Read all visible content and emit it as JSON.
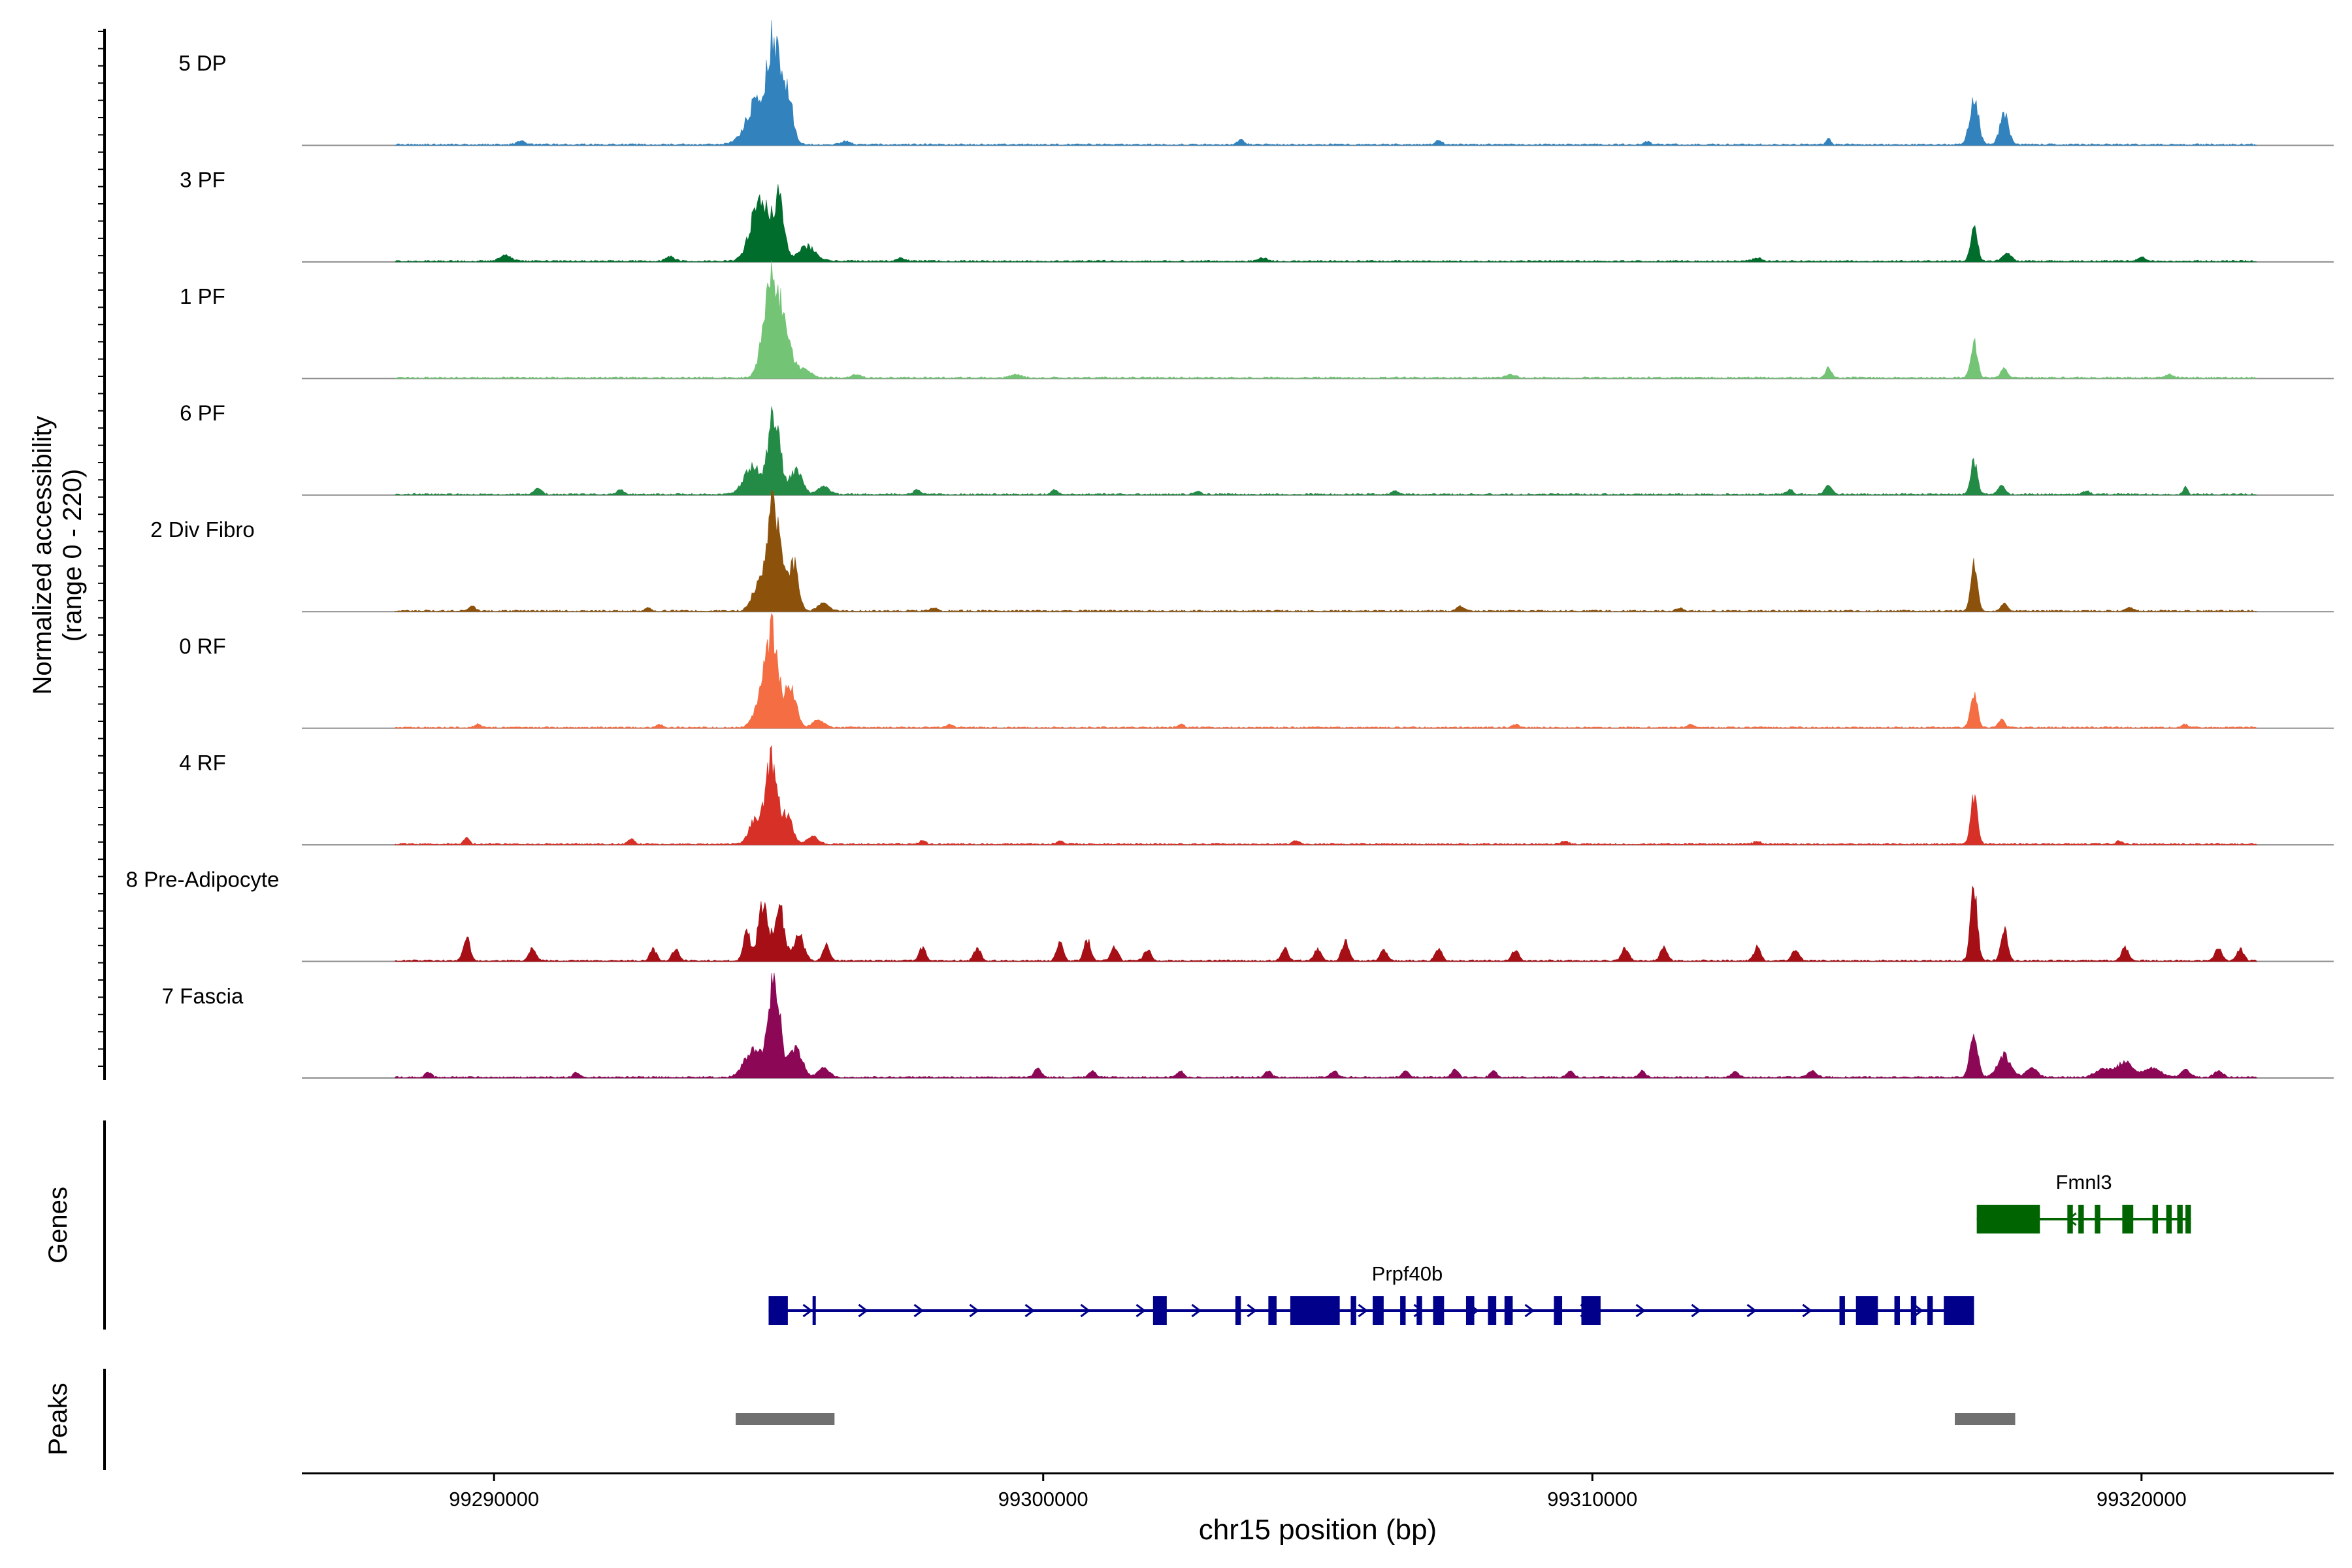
{
  "chart_data": {
    "type": "area",
    "title": "",
    "ylabel_line1": "Normalized accessibility",
    "ylabel_line2": "(range 0 - 220)",
    "yrange": [
      0,
      220
    ],
    "xlabel": "chr15 position (bp)",
    "xlim": [
      99286500,
      99323500
    ],
    "xticks": [
      {
        "value": 99290000,
        "label": "99290000"
      },
      {
        "value": 99300000,
        "label": "99300000"
      },
      {
        "value": 99310000,
        "label": "99310000"
      },
      {
        "value": 99320000,
        "label": "99320000"
      }
    ],
    "signal_range": [
      99288200,
      99322100
    ],
    "series": [
      {
        "name": "5 DP",
        "color": "#3182bd",
        "peaks": [
          [
            99294800,
            28,
            200
          ],
          [
            99295100,
            58,
            110
          ],
          [
            99295350,
            32,
            90
          ],
          [
            99316950,
            30,
            80
          ],
          [
            99317500,
            20,
            80
          ],
          [
            99314300,
            4,
            40
          ],
          [
            99303600,
            3,
            60
          ],
          [
            99307200,
            3,
            60
          ],
          [
            99290500,
            2,
            80
          ],
          [
            99296400,
            2,
            80
          ],
          [
            99311000,
            2,
            60
          ]
        ]
      },
      {
        "name": "3 PF",
        "color": "#006d2c",
        "peaks": [
          [
            99294850,
            40,
            170
          ],
          [
            99295200,
            38,
            90
          ],
          [
            99295700,
            10,
            150
          ],
          [
            99316950,
            24,
            60
          ],
          [
            99317550,
            5,
            80
          ],
          [
            99290200,
            4,
            100
          ],
          [
            99293200,
            3,
            80
          ],
          [
            99297400,
            2,
            80
          ],
          [
            99304000,
            2,
            80
          ],
          [
            99313000,
            2,
            80
          ],
          [
            99320000,
            3,
            60
          ]
        ]
      },
      {
        "name": "1 PF",
        "color": "#74c476",
        "peaks": [
          [
            99295050,
            60,
            140
          ],
          [
            99295300,
            24,
            110
          ],
          [
            99295600,
            6,
            150
          ],
          [
            99314300,
            7,
            50
          ],
          [
            99316950,
            24,
            60
          ],
          [
            99317500,
            6,
            60
          ],
          [
            99296600,
            2,
            80
          ],
          [
            99299500,
            2,
            100
          ],
          [
            99308500,
            2,
            100
          ],
          [
            99320500,
            2,
            80
          ]
        ]
      },
      {
        "name": "6 PF",
        "color": "#238b45",
        "peaks": [
          [
            99294700,
            18,
            150
          ],
          [
            99295100,
            50,
            110
          ],
          [
            99295500,
            16,
            110
          ],
          [
            99296000,
            5,
            100
          ],
          [
            99314300,
            6,
            60
          ],
          [
            99316950,
            22,
            60
          ],
          [
            99317450,
            6,
            60
          ],
          [
            99320800,
            5,
            40
          ],
          [
            99290800,
            4,
            60
          ],
          [
            99292300,
            3,
            60
          ],
          [
            99297700,
            3,
            60
          ],
          [
            99300200,
            3,
            60
          ],
          [
            99302800,
            2,
            60
          ],
          [
            99306400,
            2,
            60
          ],
          [
            99313600,
            3,
            60
          ],
          [
            99319000,
            2,
            60
          ]
        ]
      },
      {
        "name": "2 Div Fibro",
        "color": "#8c510a",
        "peaks": [
          [
            99294800,
            16,
            110
          ],
          [
            99295100,
            68,
            120
          ],
          [
            99295450,
            30,
            90
          ],
          [
            99296000,
            5,
            100
          ],
          [
            99316950,
            30,
            60
          ],
          [
            99317500,
            5,
            60
          ],
          [
            99289600,
            3,
            60
          ],
          [
            99292800,
            2,
            60
          ],
          [
            99298000,
            2,
            60
          ],
          [
            99307600,
            3,
            60
          ],
          [
            99311600,
            2,
            60
          ],
          [
            99319800,
            2,
            60
          ]
        ]
      },
      {
        "name": "0 RF",
        "color": "#f46d43",
        "peaks": [
          [
            99294800,
            10,
            110
          ],
          [
            99295050,
            60,
            120
          ],
          [
            99295400,
            26,
            100
          ],
          [
            99295900,
            5,
            100
          ],
          [
            99316950,
            24,
            60
          ],
          [
            99317450,
            5,
            60
          ],
          [
            99289700,
            2,
            60
          ],
          [
            99293000,
            2,
            60
          ],
          [
            99298300,
            2,
            60
          ],
          [
            99302500,
            2,
            60
          ],
          [
            99308600,
            2,
            60
          ],
          [
            99311800,
            2,
            60
          ],
          [
            99320800,
            2,
            60
          ]
        ]
      },
      {
        "name": "4 RF",
        "color": "#d73027",
        "peaks": [
          [
            99294750,
            16,
            110
          ],
          [
            99295050,
            52,
            110
          ],
          [
            99295350,
            18,
            90
          ],
          [
            99295800,
            5,
            100
          ],
          [
            99316950,
            30,
            60
          ],
          [
            99289500,
            4,
            50
          ],
          [
            99292500,
            3,
            60
          ],
          [
            99297800,
            2,
            60
          ],
          [
            99300300,
            2,
            60
          ],
          [
            99304600,
            2,
            60
          ],
          [
            99309500,
            2,
            60
          ],
          [
            99313000,
            2,
            60
          ],
          [
            99319600,
            2,
            60
          ]
        ]
      },
      {
        "name": "8 Pre-Adipocyte",
        "color": "#a50f15",
        "peaks": [
          [
            99294600,
            20,
            60
          ],
          [
            99294900,
            38,
            90
          ],
          [
            99295200,
            34,
            90
          ],
          [
            99295550,
            18,
            90
          ],
          [
            99296050,
            10,
            60
          ],
          [
            99289500,
            16,
            60
          ],
          [
            99290700,
            8,
            60
          ],
          [
            99292900,
            8,
            60
          ],
          [
            99293300,
            8,
            60
          ],
          [
            99297800,
            9,
            60
          ],
          [
            99298800,
            9,
            60
          ],
          [
            99300300,
            12,
            60
          ],
          [
            99300800,
            14,
            60
          ],
          [
            99301300,
            10,
            60
          ],
          [
            99301900,
            8,
            60
          ],
          [
            99304400,
            8,
            60
          ],
          [
            99305000,
            8,
            60
          ],
          [
            99305500,
            14,
            60
          ],
          [
            99306200,
            8,
            60
          ],
          [
            99307200,
            8,
            60
          ],
          [
            99308600,
            8,
            60
          ],
          [
            99310600,
            9,
            60
          ],
          [
            99311300,
            9,
            60
          ],
          [
            99313000,
            9,
            60
          ],
          [
            99313700,
            8,
            60
          ],
          [
            99316950,
            50,
            60
          ],
          [
            99317500,
            20,
            60
          ],
          [
            99319700,
            9,
            60
          ],
          [
            99321400,
            9,
            60
          ],
          [
            99321800,
            8,
            60
          ]
        ]
      },
      {
        "name": "7 Fascia",
        "color": "#8c0756",
        "peaks": [
          [
            99294700,
            18,
            150
          ],
          [
            99295100,
            60,
            110
          ],
          [
            99295500,
            20,
            110
          ],
          [
            99296000,
            6,
            100
          ],
          [
            99299900,
            6,
            60
          ],
          [
            99300900,
            4,
            60
          ],
          [
            99302500,
            4,
            60
          ],
          [
            99304100,
            4,
            60
          ],
          [
            99305300,
            4,
            60
          ],
          [
            99306600,
            4,
            60
          ],
          [
            99307500,
            5,
            60
          ],
          [
            99308200,
            4,
            60
          ],
          [
            99309600,
            4,
            60
          ],
          [
            99310900,
            4,
            60
          ],
          [
            99312600,
            4,
            60
          ],
          [
            99314000,
            4,
            80
          ],
          [
            99316950,
            28,
            70
          ],
          [
            99317500,
            14,
            120
          ],
          [
            99318000,
            6,
            100
          ],
          [
            99319300,
            5,
            150
          ],
          [
            99319700,
            10,
            140
          ],
          [
            99320200,
            6,
            150
          ],
          [
            99320800,
            5,
            80
          ],
          [
            99321400,
            4,
            80
          ],
          [
            99288800,
            3,
            60
          ],
          [
            99291500,
            3,
            60
          ]
        ]
      }
    ],
    "genes_label": "Genes",
    "genes": [
      {
        "name": "Fmnl3",
        "color": "#006400",
        "start": 99317000,
        "end": 99320900,
        "row": 0,
        "direction": "minus",
        "exons": [
          [
            99317000,
            99318150
          ],
          [
            99318650,
            99318750
          ],
          [
            99318850,
            99318950
          ],
          [
            99319150,
            99319250
          ],
          [
            99319650,
            99319850
          ],
          [
            99320200,
            99320300
          ],
          [
            99320450,
            99320550
          ],
          [
            99320650,
            99320750
          ],
          [
            99320800,
            99320900
          ]
        ]
      },
      {
        "name": "Prpf40b",
        "color": "#00008b",
        "start": 99295000,
        "end": 99316950,
        "row": 1,
        "direction": "plus",
        "exons": [
          [
            99295000,
            99295350
          ],
          [
            99295800,
            99295830
          ],
          [
            99302000,
            99302250
          ],
          [
            99303500,
            99303600
          ],
          [
            99304100,
            99304250
          ],
          [
            99304500,
            99305400
          ],
          [
            99305600,
            99305700
          ],
          [
            99306000,
            99306200
          ],
          [
            99306500,
            99306600
          ],
          [
            99306800,
            99306900
          ],
          [
            99307100,
            99307300
          ],
          [
            99307700,
            99307850
          ],
          [
            99308100,
            99308250
          ],
          [
            99308400,
            99308550
          ],
          [
            99309300,
            99309450
          ],
          [
            99309800,
            99310150
          ],
          [
            99314500,
            99314600
          ],
          [
            99314800,
            99315200
          ],
          [
            99315500,
            99315600
          ],
          [
            99315800,
            99315900
          ],
          [
            99316100,
            99316200
          ],
          [
            99316400,
            99316950
          ]
        ]
      }
    ],
    "peaks_label": "Peaks",
    "peak_regions": [
      [
        99294400,
        99296200
      ],
      [
        99316600,
        99317700
      ]
    ]
  }
}
